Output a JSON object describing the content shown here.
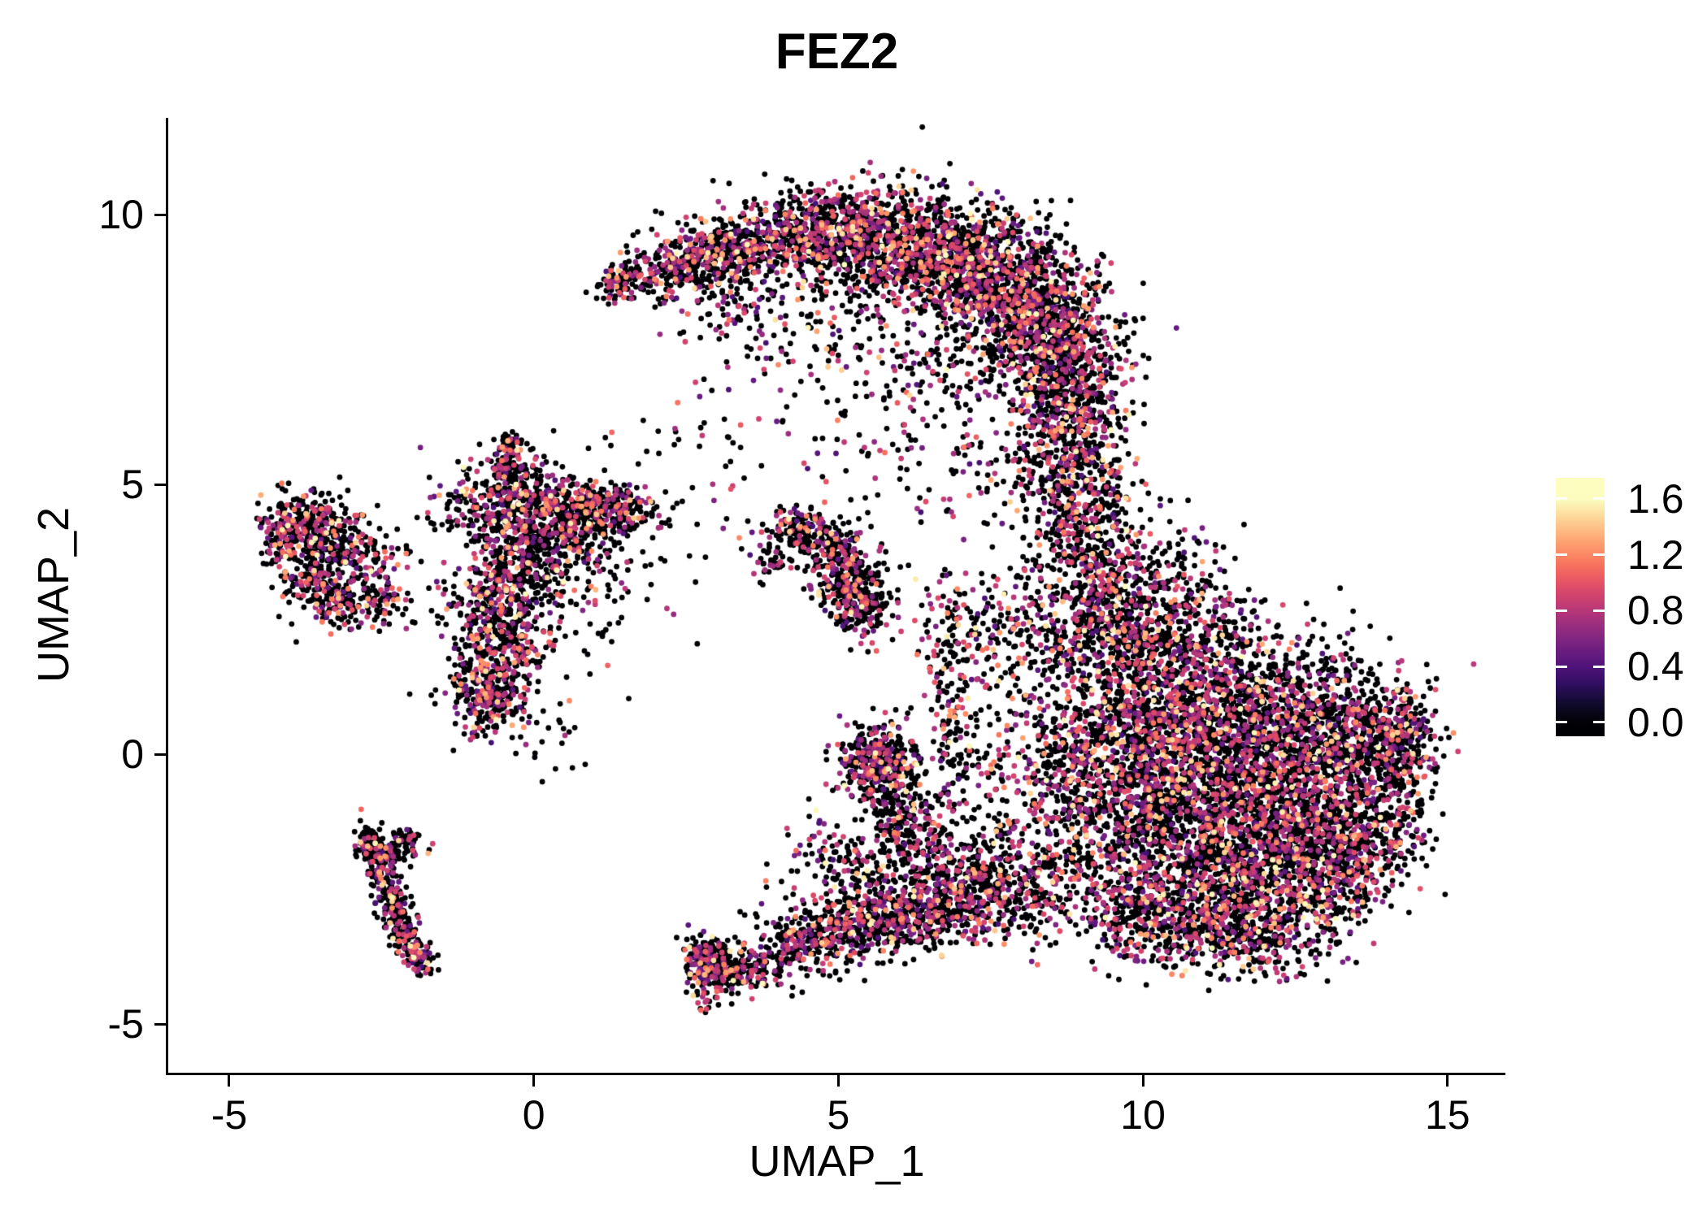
{
  "chart_data": {
    "type": "scatter",
    "title": "FEZ2",
    "xlabel": "UMAP_1",
    "ylabel": "UMAP_2",
    "xlim": [
      -6.0,
      15.95
    ],
    "ylim": [
      -5.9,
      11.8
    ],
    "grid": false,
    "x_ticks": [
      {
        "value": -5,
        "label": "-5"
      },
      {
        "value": 0,
        "label": "0"
      },
      {
        "value": 5,
        "label": "5"
      },
      {
        "value": 10,
        "label": "10"
      },
      {
        "value": 15,
        "label": "15"
      }
    ],
    "y_ticks": [
      {
        "value": -5,
        "label": "-5"
      },
      {
        "value": 0,
        "label": "0"
      },
      {
        "value": 5,
        "label": "5"
      },
      {
        "value": 10,
        "label": "10"
      }
    ],
    "legend": {
      "position": "right",
      "bar_range": [
        -0.1,
        1.75
      ],
      "ticks": [
        {
          "value": 0.0,
          "label": "0.0"
        },
        {
          "value": 0.4,
          "label": "0.4"
        },
        {
          "value": 0.8,
          "label": "0.8"
        },
        {
          "value": 1.2,
          "label": "1.2"
        },
        {
          "value": 1.6,
          "label": "1.6"
        }
      ]
    },
    "colormap": [
      {
        "v": 0.0,
        "color": "#000004"
      },
      {
        "v": 0.16,
        "color": "#140e36"
      },
      {
        "v": 0.32,
        "color": "#3b0f70"
      },
      {
        "v": 0.48,
        "color": "#641a80"
      },
      {
        "v": 0.64,
        "color": "#8c2981"
      },
      {
        "v": 0.8,
        "color": "#b73779"
      },
      {
        "v": 0.96,
        "color": "#de4968"
      },
      {
        "v": 1.12,
        "color": "#f7705c"
      },
      {
        "v": 1.28,
        "color": "#fe9f6d"
      },
      {
        "v": 1.44,
        "color": "#fecf92"
      },
      {
        "v": 1.6,
        "color": "#fcfdbf"
      }
    ],
    "point_radius_px": 3.4,
    "seed": 123456,
    "value_mix": {
      "zero_fraction": 0.66,
      "bands": [
        {
          "p": 0.09,
          "min": 0.35,
          "max": 0.65
        },
        {
          "p": 0.16,
          "min": 0.65,
          "max": 0.95
        },
        {
          "p": 0.06,
          "min": 0.95,
          "max": 1.3
        },
        {
          "p": 0.03,
          "min": 1.3,
          "max": 1.6
        }
      ]
    },
    "clusters_format": [
      "center_x",
      "center_y",
      "sd_x",
      "sd_y",
      "n_points"
    ],
    "clusters": [
      [
        1.35,
        8.75,
        0.18,
        0.2,
        60
      ],
      [
        1.9,
        8.95,
        0.3,
        0.25,
        110
      ],
      [
        2.6,
        9.2,
        0.35,
        0.3,
        170
      ],
      [
        3.4,
        9.45,
        0.45,
        0.35,
        260
      ],
      [
        4.4,
        9.6,
        0.5,
        0.4,
        360
      ],
      [
        5.4,
        9.65,
        0.55,
        0.45,
        430
      ],
      [
        6.4,
        9.4,
        0.6,
        0.5,
        560
      ],
      [
        7.4,
        8.95,
        0.6,
        0.55,
        660
      ],
      [
        8.2,
        8.25,
        0.55,
        0.55,
        620
      ],
      [
        8.7,
        7.35,
        0.5,
        0.5,
        480
      ],
      [
        8.85,
        6.35,
        0.45,
        0.5,
        340
      ],
      [
        8.8,
        5.35,
        0.4,
        0.5,
        240
      ],
      [
        5.9,
        8.6,
        1.3,
        0.8,
        230
      ],
      [
        4.3,
        7.7,
        0.9,
        0.7,
        90
      ],
      [
        6.9,
        7.0,
        0.8,
        0.6,
        150
      ],
      [
        3.0,
        8.6,
        0.5,
        0.45,
        90
      ],
      [
        9.0,
        4.5,
        0.45,
        0.5,
        210
      ],
      [
        9.2,
        3.5,
        0.5,
        0.55,
        250
      ],
      [
        9.45,
        2.5,
        0.55,
        0.55,
        300
      ],
      [
        10.3,
        1.8,
        0.7,
        0.6,
        430
      ],
      [
        9.9,
        0.6,
        0.6,
        0.6,
        400
      ],
      [
        11.2,
        0.9,
        0.8,
        0.7,
        620
      ],
      [
        12.4,
        0.4,
        0.8,
        0.7,
        620
      ],
      [
        13.5,
        0.3,
        0.6,
        0.55,
        400
      ],
      [
        14.25,
        0.3,
        0.3,
        0.5,
        220
      ],
      [
        10.6,
        -0.7,
        0.8,
        0.7,
        620
      ],
      [
        11.8,
        -1.0,
        0.9,
        0.7,
        680
      ],
      [
        12.9,
        -1.3,
        0.7,
        0.6,
        480
      ],
      [
        11.0,
        -2.2,
        0.8,
        0.6,
        530
      ],
      [
        12.2,
        -2.4,
        0.7,
        0.55,
        430
      ],
      [
        13.2,
        -2.3,
        0.5,
        0.5,
        270
      ],
      [
        10.0,
        -3.0,
        0.5,
        0.45,
        240
      ],
      [
        11.0,
        -3.3,
        0.5,
        0.4,
        210
      ],
      [
        12.0,
        -3.4,
        0.5,
        0.4,
        190
      ],
      [
        9.2,
        -1.5,
        0.6,
        0.7,
        340
      ],
      [
        8.8,
        -0.3,
        0.5,
        0.6,
        270
      ],
      [
        13.9,
        -1.3,
        0.4,
        0.5,
        170
      ],
      [
        8.3,
        1.6,
        0.6,
        0.8,
        210
      ],
      [
        7.7,
        2.5,
        0.4,
        0.5,
        90
      ],
      [
        10.4,
        3.3,
        0.6,
        0.6,
        130
      ],
      [
        11.2,
        2.4,
        0.5,
        0.5,
        90
      ],
      [
        13.0,
        1.6,
        0.5,
        0.4,
        70
      ],
      [
        6.9,
        0.6,
        0.18,
        1.1,
        120
      ],
      [
        6.8,
        2.2,
        0.25,
        0.6,
        80
      ],
      [
        5.65,
        -0.15,
        0.33,
        0.38,
        360
      ],
      [
        5.95,
        -0.95,
        0.3,
        0.4,
        140
      ],
      [
        6.35,
        -1.6,
        0.3,
        0.4,
        110
      ],
      [
        7.6,
        -0.5,
        0.5,
        0.9,
        90
      ],
      [
        2.95,
        -4.05,
        0.28,
        0.28,
        190
      ],
      [
        2.8,
        -3.7,
        0.15,
        0.2,
        70
      ],
      [
        3.6,
        -3.9,
        0.35,
        0.25,
        120
      ],
      [
        4.4,
        -3.6,
        0.4,
        0.3,
        140
      ],
      [
        5.1,
        -3.3,
        0.45,
        0.3,
        190
      ],
      [
        5.9,
        -3.0,
        0.5,
        0.35,
        270
      ],
      [
        6.8,
        -2.7,
        0.55,
        0.4,
        340
      ],
      [
        7.8,
        -2.4,
        0.6,
        0.5,
        390
      ],
      [
        5.6,
        -2.2,
        0.5,
        0.4,
        110
      ],
      [
        4.8,
        -1.7,
        0.3,
        0.3,
        45
      ],
      [
        4.35,
        4.15,
        0.28,
        0.22,
        130
      ],
      [
        4.8,
        3.85,
        0.25,
        0.25,
        100
      ],
      [
        5.15,
        3.25,
        0.3,
        0.4,
        250
      ],
      [
        5.45,
        2.75,
        0.25,
        0.3,
        120
      ],
      [
        3.95,
        3.6,
        0.25,
        0.2,
        40
      ],
      [
        -0.5,
        4.6,
        0.5,
        0.4,
        310
      ],
      [
        0.35,
        4.45,
        0.45,
        0.35,
        250
      ],
      [
        1.1,
        4.5,
        0.4,
        0.25,
        150
      ],
      [
        1.6,
        4.5,
        0.25,
        0.2,
        80
      ],
      [
        -0.25,
        3.6,
        0.45,
        0.45,
        290
      ],
      [
        -0.65,
        2.7,
        0.4,
        0.4,
        230
      ],
      [
        -0.55,
        1.8,
        0.35,
        0.4,
        210
      ],
      [
        -0.75,
        1.05,
        0.3,
        0.35,
        250
      ],
      [
        -0.35,
        5.3,
        0.2,
        0.3,
        90
      ],
      [
        -0.45,
        5.75,
        0.1,
        0.15,
        35
      ],
      [
        0.2,
        2.9,
        0.9,
        0.9,
        150
      ],
      [
        0.8,
        3.7,
        0.5,
        0.5,
        90
      ],
      [
        -3.85,
        4.35,
        0.3,
        0.25,
        180
      ],
      [
        -3.35,
        4.0,
        0.35,
        0.3,
        190
      ],
      [
        -3.6,
        3.3,
        0.3,
        0.3,
        150
      ],
      [
        -3.15,
        2.85,
        0.3,
        0.25,
        130
      ],
      [
        -2.7,
        3.5,
        0.3,
        0.35,
        100
      ],
      [
        -4.1,
        3.9,
        0.15,
        0.2,
        50
      ],
      [
        -2.45,
        2.75,
        0.2,
        0.2,
        40
      ],
      [
        -2.7,
        -1.6,
        0.12,
        0.18,
        65
      ],
      [
        -2.55,
        -2.05,
        0.12,
        0.2,
        75
      ],
      [
        -2.4,
        -2.5,
        0.12,
        0.2,
        75
      ],
      [
        -2.25,
        -2.95,
        0.12,
        0.2,
        70
      ],
      [
        -2.1,
        -3.35,
        0.12,
        0.18,
        60
      ],
      [
        -1.95,
        -3.65,
        0.12,
        0.15,
        50
      ],
      [
        -1.83,
        -3.85,
        0.1,
        0.12,
        35
      ],
      [
        -2.35,
        -1.78,
        0.22,
        0.13,
        55
      ],
      [
        -2.05,
        -1.6,
        0.14,
        0.12,
        40
      ],
      [
        3.3,
        6.3,
        1.2,
        1.0,
        45
      ],
      [
        2.3,
        4.9,
        0.8,
        0.7,
        28
      ],
      [
        6.5,
        4.7,
        0.7,
        0.8,
        40
      ],
      [
        4.6,
        -2.7,
        0.6,
        0.5,
        55
      ],
      [
        0.3,
        0.3,
        0.5,
        0.5,
        22
      ],
      [
        5.2,
        5.6,
        0.8,
        0.7,
        30
      ],
      [
        7.5,
        5.2,
        0.5,
        0.6,
        45
      ]
    ]
  }
}
